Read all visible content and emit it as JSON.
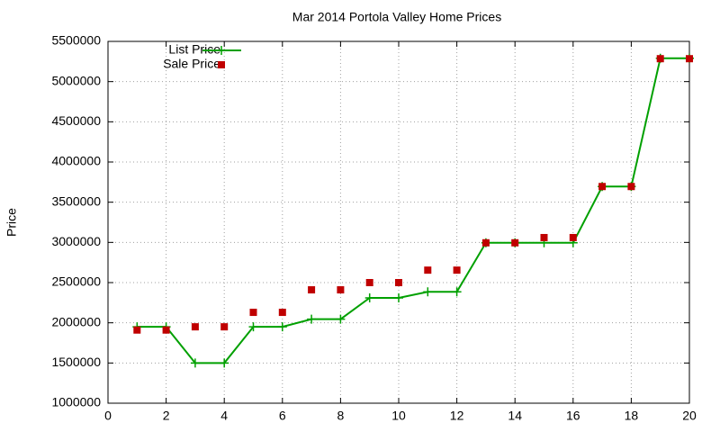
{
  "chart_data": {
    "type": "line",
    "title": "Mar 2014 Portola Valley Home Prices",
    "y_label": "Price",
    "x": [
      1,
      2,
      3,
      4,
      5,
      6,
      7,
      8,
      9,
      10,
      11,
      12,
      13,
      14,
      15,
      16,
      17,
      18,
      19,
      20
    ],
    "series": [
      {
        "name": "List Price",
        "color": "#00a000",
        "style": "linespoints",
        "values": [
          1950000,
          1950000,
          1500000,
          1500000,
          1950000,
          1950000,
          2045000,
          2045000,
          2310000,
          2310000,
          2385000,
          2385000,
          2995000,
          2995000,
          2995000,
          2995000,
          3695000,
          3695000,
          5290000,
          5290000
        ]
      },
      {
        "name": "Sale Price",
        "color": "#c00000",
        "style": "points",
        "values": [
          1910000,
          1910000,
          1950000,
          1950000,
          2130000,
          2130000,
          2410000,
          2410000,
          2500000,
          2500000,
          2655000,
          2655000,
          2995000,
          2995000,
          3060000,
          3060000,
          3695000,
          3695000,
          5285000,
          5285000
        ]
      }
    ],
    "xlim": [
      0,
      20
    ],
    "xticks": [
      0,
      2,
      4,
      6,
      8,
      10,
      12,
      14,
      16,
      18,
      20
    ],
    "ylim": [
      1000000,
      5500000
    ],
    "yticks": [
      1000000,
      1500000,
      2000000,
      2500000,
      3000000,
      3500000,
      4000000,
      4500000,
      5000000,
      5500000
    ],
    "grid": true,
    "legend": "top-left"
  }
}
